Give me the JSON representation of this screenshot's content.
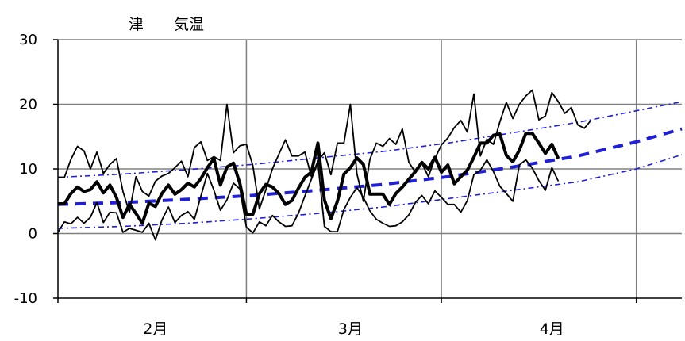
{
  "chart_data": {
    "type": "line",
    "title": "津　　気温",
    "xlabel": "",
    "ylabel": "",
    "ylim": [
      -10,
      30
    ],
    "yticks": [
      30,
      20,
      10,
      0,
      -10
    ],
    "x_range_days": [
      0,
      96
    ],
    "xticks": [
      {
        "label": "2月",
        "day": 15
      },
      {
        "label": "3月",
        "day": 45
      },
      {
        "label": "4月",
        "day": 76
      }
    ],
    "month_boundaries_day": [
      0,
      29,
      59,
      89
    ],
    "grid": true,
    "legend": "none",
    "colors": {
      "observed": "#000000",
      "normal": "#1f1fd6",
      "axis": "#000000",
      "grid": "#808080"
    },
    "series": [
      {
        "role": "max",
        "style": "thin-solid",
        "values": [
          8.7,
          8.7,
          11.5,
          13.5,
          12.8,
          10,
          12.6,
          9.3,
          10.7,
          11.6,
          6.5,
          3.3,
          8.8,
          6.5,
          5.8,
          8.1,
          8.9,
          9.3,
          10.2,
          11.2,
          8.8,
          13.3,
          14.2,
          11.3,
          11.9,
          11.3,
          20,
          12.5,
          13.6,
          13.8,
          10.5,
          3.8,
          6.8,
          10,
          12.3,
          14.5,
          12,
          12,
          12.6,
          8.8,
          11.2,
          12.5,
          9.1,
          14,
          14,
          20,
          9.3,
          5,
          11.5,
          14,
          13.5,
          14.7,
          13.8,
          16.2,
          11,
          9.5,
          10.9,
          8.8,
          11.6,
          13.7,
          14.8,
          16.4,
          17.5,
          15.7,
          21.6,
          12,
          14.6,
          13.8,
          17.3,
          20.3,
          17.8,
          20,
          21.3,
          22.2,
          17.6,
          18.2,
          21.8,
          20.4,
          18.6,
          19.5,
          16.8,
          16.3,
          17.5
        ]
      },
      {
        "role": "mean",
        "style": "thick-solid",
        "values": [
          4.6,
          4.6,
          6.2,
          7.2,
          6.5,
          6.8,
          8,
          6.3,
          7.5,
          5.6,
          2.5,
          4.5,
          3.1,
          1.6,
          4.7,
          4.2,
          6.2,
          7.5,
          6.1,
          6.8,
          7.8,
          7.2,
          8.5,
          10.2,
          11.6,
          7.5,
          10.3,
          10.9,
          7.7,
          3,
          3,
          6.2,
          7.6,
          7.2,
          6.2,
          4.5,
          5.1,
          7,
          8.7,
          9.5,
          14,
          5.2,
          2.3,
          5,
          9.2,
          10.2,
          11.7,
          10.7,
          6.1,
          6.1,
          6.1,
          4.5,
          6.2,
          7.2,
          8.4,
          9.6,
          11,
          10,
          11.8,
          9.5,
          10.6,
          7.7,
          8.8,
          9.8,
          11.8,
          14,
          14,
          15.2,
          15.4,
          12.1,
          11.1,
          12.9,
          15.5,
          15.5,
          14,
          12.4,
          13.8,
          11.6
        ]
      },
      {
        "role": "min",
        "style": "thin-solid",
        "values": [
          0.2,
          1.8,
          1.5,
          2.5,
          1.6,
          2.5,
          4.8,
          1.7,
          3.3,
          3.2,
          0.2,
          0.8,
          0.5,
          0.2,
          1.6,
          -1,
          2.1,
          4.1,
          1.7,
          2.8,
          3.4,
          2.2,
          5.8,
          9.3,
          6.7,
          3.6,
          5.2,
          7.8,
          6.9,
          1,
          0.1,
          1.8,
          1.2,
          2.8,
          1.8,
          1.1,
          1.2,
          3.1,
          5.8,
          8.4,
          11,
          1.1,
          0.3,
          0.3,
          3.7,
          5.6,
          7.1,
          5.6,
          3.5,
          2.2,
          1.6,
          1.1,
          1.2,
          1.8,
          2.9,
          4.8,
          5.9,
          4.6,
          6.6,
          5.6,
          4.5,
          4.5,
          3.3,
          5.1,
          9.1,
          9.8,
          11.4,
          9.6,
          7.3,
          6.2,
          5,
          10.6,
          11.4,
          10.1,
          8.2,
          6.7,
          10.2,
          8.1
        ]
      },
      {
        "role": "normal-max",
        "style": "dash-dot",
        "color": "#1f1fd6",
        "x": [
          0,
          10,
          20,
          30,
          40,
          50,
          60,
          70,
          80,
          89,
          96
        ],
        "values": [
          8.7,
          9.2,
          9.9,
          10.7,
          11.7,
          12.7,
          14.0,
          15.6,
          17.2,
          19.0,
          20.4
        ]
      },
      {
        "role": "normal-mean",
        "style": "dashed-thick",
        "color": "#1f1fd6",
        "x": [
          0,
          10,
          20,
          30,
          40,
          50,
          60,
          70,
          80,
          89,
          96
        ],
        "values": [
          4.5,
          4.8,
          5.3,
          5.9,
          6.7,
          7.6,
          8.8,
          10.3,
          12.0,
          14.2,
          16.2
        ]
      },
      {
        "role": "normal-min",
        "style": "dash-dot",
        "color": "#1f1fd6",
        "x": [
          0,
          10,
          20,
          30,
          40,
          50,
          60,
          70,
          80,
          89,
          96
        ],
        "values": [
          0.8,
          1.1,
          1.6,
          2.3,
          3.1,
          4.1,
          5.4,
          6.7,
          8.0,
          10.0,
          12.2
        ]
      }
    ]
  }
}
